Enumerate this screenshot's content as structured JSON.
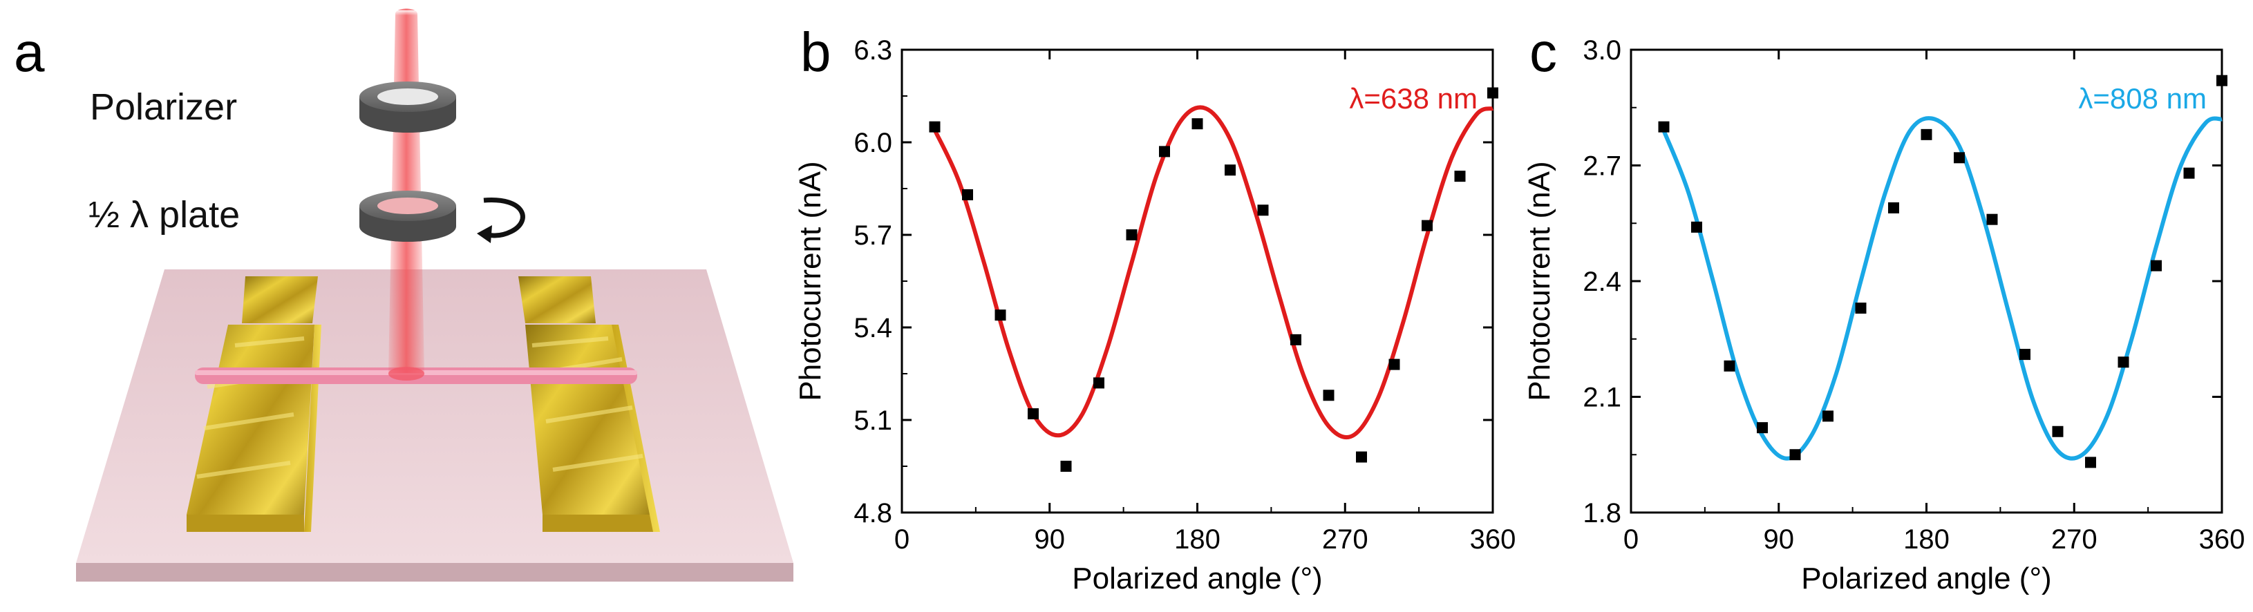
{
  "panels": {
    "a": {
      "letter": "a",
      "polarizer_label": "Polarizer",
      "plate_label": "½ λ plate"
    },
    "b": {
      "letter": "b"
    },
    "c": {
      "letter": "c"
    }
  },
  "colors": {
    "red_curve": "#e01c1c",
    "blue_curve": "#1aa8e6",
    "points": "#000000",
    "substrate": "#e9cdd3",
    "gold": "#d9b81c",
    "beam": "#f2555a"
  },
  "chart_data": [
    {
      "type": "scatter",
      "panel": "b",
      "annotation": "λ=638 nm",
      "xlabel": "Polarized angle (°)",
      "ylabel": "Photocurrent (nA)",
      "xlim": [
        0,
        360
      ],
      "ylim": [
        4.8,
        6.3
      ],
      "xticks": [
        "0",
        "90",
        "180",
        "270",
        "360"
      ],
      "yticks": [
        "4.8",
        "5.1",
        "5.4",
        "5.7",
        "6.0",
        "6.3"
      ],
      "color": "#e01c1c",
      "points": {
        "x": [
          20,
          40,
          60,
          80,
          100,
          120,
          140,
          160,
          180,
          200,
          220,
          240,
          260,
          280,
          300,
          320,
          340,
          360
        ],
        "y": [
          6.05,
          5.83,
          5.44,
          5.12,
          4.95,
          5.22,
          5.7,
          5.97,
          6.06,
          5.91,
          5.78,
          5.36,
          5.18,
          4.98,
          5.28,
          5.73,
          5.89,
          6.16
        ]
      },
      "fit": {
        "x": [
          20,
          35,
          50,
          65,
          80,
          95,
          110,
          125,
          140,
          155,
          170,
          185,
          200,
          215,
          230,
          245,
          260,
          275,
          290,
          305,
          320,
          335,
          350,
          360
        ],
        "y": [
          6.04,
          5.87,
          5.61,
          5.33,
          5.12,
          5.05,
          5.12,
          5.33,
          5.61,
          5.89,
          6.07,
          6.11,
          6.01,
          5.78,
          5.5,
          5.24,
          5.08,
          5.05,
          5.17,
          5.41,
          5.7,
          5.95,
          6.09,
          6.11
        ]
      }
    },
    {
      "type": "scatter",
      "panel": "c",
      "annotation": "λ=808 nm",
      "xlabel": "Polarized angle (°)",
      "ylabel": "Photocurrent (nA)",
      "xlim": [
        0,
        360
      ],
      "ylim": [
        1.8,
        3.0
      ],
      "xticks": [
        "0",
        "90",
        "180",
        "270",
        "360"
      ],
      "yticks": [
        "1.8",
        "2.1",
        "2.4",
        "2.7",
        "3.0"
      ],
      "color": "#1aa8e6",
      "points": {
        "x": [
          20,
          40,
          60,
          80,
          100,
          120,
          140,
          160,
          180,
          200,
          220,
          240,
          260,
          280,
          300,
          320,
          340,
          360
        ],
        "y": [
          2.8,
          2.54,
          2.18,
          2.02,
          1.95,
          2.05,
          2.33,
          2.59,
          2.78,
          2.72,
          2.56,
          2.21,
          2.01,
          1.93,
          2.19,
          2.44,
          2.68,
          2.92
        ]
      },
      "fit": {
        "x": [
          20,
          35,
          50,
          65,
          80,
          95,
          110,
          125,
          140,
          155,
          170,
          185,
          200,
          215,
          230,
          245,
          260,
          275,
          290,
          305,
          320,
          335,
          350,
          360
        ],
        "y": [
          2.79,
          2.63,
          2.4,
          2.16,
          2.0,
          1.94,
          2.0,
          2.16,
          2.4,
          2.63,
          2.79,
          2.82,
          2.75,
          2.56,
          2.32,
          2.09,
          1.96,
          1.95,
          2.05,
          2.25,
          2.49,
          2.7,
          2.81,
          2.82
        ]
      }
    }
  ]
}
